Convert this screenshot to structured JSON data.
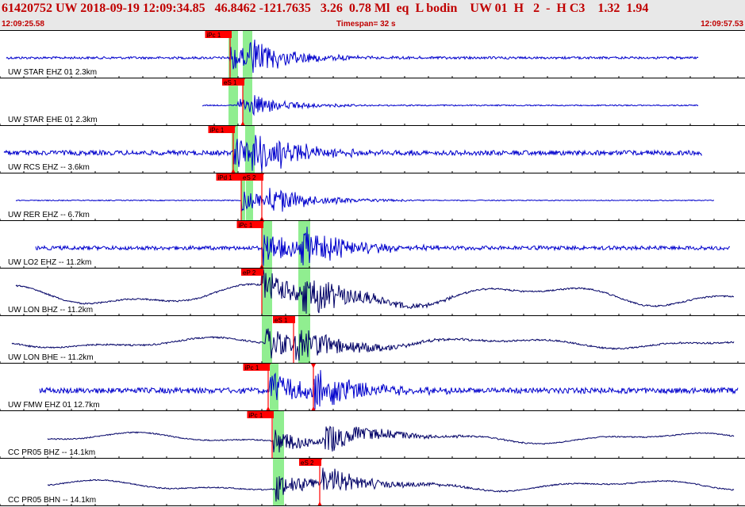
{
  "header": {
    "title": "61420752 UW 2018-09-19 12:09:34.85   46.8462 -121.7635   3.26  0.78 Ml  eq  L bodin    UW 01  H   2  -  H C3    1.32  1.94",
    "time_start": "12:09:25.58",
    "timespan": "Timespan=  32 s",
    "time_end": "12:09:57.53"
  },
  "colors": {
    "header_text": "#c00000",
    "header_bg": "#e8e8e8",
    "trace_short_period": "#0000cc",
    "trace_broadband": "#000066",
    "pick_window": "#90ee90",
    "pick_marker": "#ff0000"
  },
  "panels": [
    {
      "label": "UW STAR EHZ 01 2.3km",
      "trace": "short",
      "amp": 8,
      "noise": 3,
      "start": 8,
      "end": 880,
      "onset": 290,
      "s_onset": 315,
      "lp": 0,
      "green": [
        {
          "x": 288,
          "w": 12
        },
        {
          "x": 306,
          "w": 12
        }
      ],
      "picks": [
        {
          "label": "iPc 1",
          "x": 290,
          "tri": false
        }
      ]
    },
    {
      "label": "UW STAR EHE 01 2.3km",
      "trace": "short",
      "amp": 4,
      "noise": 1.5,
      "start": 255,
      "end": 880,
      "onset": 300,
      "s_onset": 315,
      "lp": 0,
      "green": [
        {
          "x": 288,
          "w": 12
        },
        {
          "x": 306,
          "w": 12
        }
      ],
      "picks": [
        {
          "label": "eS 1",
          "x": 306,
          "tri": true
        }
      ]
    },
    {
      "label": "UW RCS EHZ -- 3.6km",
      "trace": "short",
      "amp": 10,
      "noise": 6,
      "start": 5,
      "end": 885,
      "onset": 295,
      "s_onset": 318,
      "lp": 0,
      "green": [
        {
          "x": 292,
          "w": 8
        },
        {
          "x": 309,
          "w": 12
        }
      ],
      "picks": [
        {
          "label": "iPc 1",
          "x": 294,
          "tri": true
        }
      ]
    },
    {
      "label": "UW RER EHZ -- 6.7km",
      "trace": "short",
      "amp": 6,
      "noise": 1.2,
      "start": 20,
      "end": 900,
      "onset": 305,
      "s_onset": 340,
      "lp": 0,
      "green": [
        {
          "x": 304,
          "w": 5
        },
        {
          "x": 310,
          "w": 9
        }
      ],
      "picks": [
        {
          "label": "iPd 1",
          "x": 304,
          "tri": false
        },
        {
          "label": "eS 2",
          "x": 330,
          "tri": true
        }
      ]
    },
    {
      "label": "UW LO2 EHZ -- 11.2km",
      "trace": "short",
      "amp": 10,
      "noise": 5,
      "start": 45,
      "end": 920,
      "onset": 332,
      "s_onset": 378,
      "lp": 0,
      "green": [
        {
          "x": 330,
          "w": 13
        },
        {
          "x": 376,
          "w": 15
        }
      ],
      "picks": [
        {
          "label": "iPc 1",
          "x": 330,
          "tri": true
        }
      ]
    },
    {
      "label": "UW LON BHZ -- 11.2km",
      "trace": "broad",
      "amp": 12,
      "noise": 2,
      "start": 20,
      "end": 925,
      "onset": 330,
      "s_onset": 378,
      "lp": 12,
      "green": [
        {
          "x": 330,
          "w": 13
        },
        {
          "x": 376,
          "w": 15
        }
      ],
      "picks": [
        {
          "label": "eP 2",
          "x": 330,
          "tri": false
        }
      ]
    },
    {
      "label": "UW LON BHE -- 11.2km",
      "trace": "broad",
      "amp": 10,
      "noise": 2,
      "start": 15,
      "end": 925,
      "onset": 335,
      "s_onset": 372,
      "lp": 6,
      "green": [
        {
          "x": 330,
          "w": 13
        },
        {
          "x": 376,
          "w": 15
        }
      ],
      "picks": [
        {
          "label": "eS 1",
          "x": 370,
          "tri": false
        }
      ]
    },
    {
      "label": "UW FMW EHZ 01 12.7km",
      "trace": "short",
      "amp": 12,
      "noise": 7,
      "start": 50,
      "end": 930,
      "onset": 340,
      "s_onset": 395,
      "lp": 0,
      "green": [
        {
          "x": 340,
          "w": 11
        }
      ],
      "picks": [
        {
          "label": "iPc 1",
          "x": 338,
          "tri": true
        },
        {
          "label": "",
          "x": 395,
          "tri": true
        }
      ]
    },
    {
      "label": "CC PR05 BHZ -- 14.1km",
      "trace": "broad",
      "amp": 8,
      "noise": 1.5,
      "start": 60,
      "end": 925,
      "onset": 345,
      "s_onset": 410,
      "lp": 6,
      "green": [
        {
          "x": 344,
          "w": 14
        }
      ],
      "picks": [
        {
          "label": "iPc 1",
          "x": 343,
          "tri": false
        }
      ]
    },
    {
      "label": "CC PR05 BHN -- 14.1km",
      "trace": "broad",
      "amp": 8,
      "noise": 1.5,
      "start": 60,
      "end": 925,
      "onset": 348,
      "s_onset": 405,
      "lp": 6,
      "green": [
        {
          "x": 344,
          "w": 14
        }
      ],
      "picks": [
        {
          "label": "eS 2",
          "x": 403,
          "tri": true
        }
      ]
    }
  ]
}
